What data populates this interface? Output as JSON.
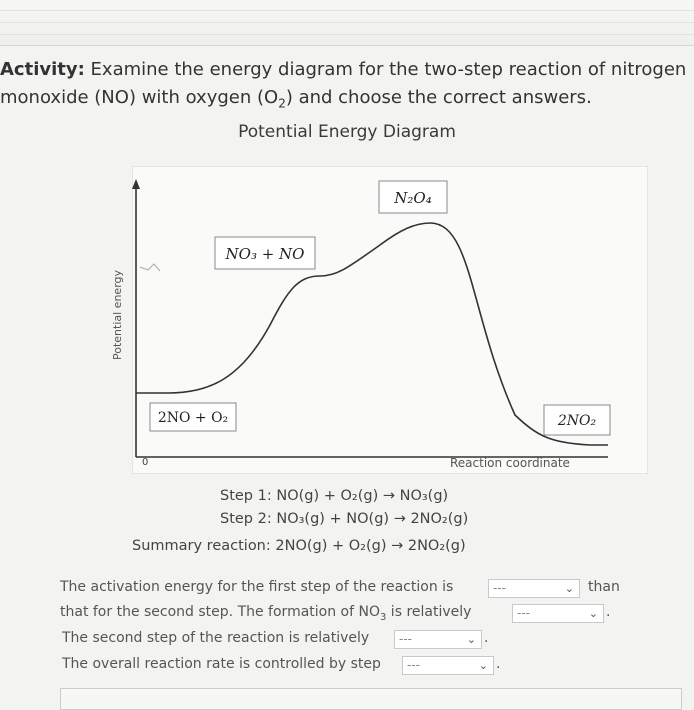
{
  "activity": {
    "label": "Activity:",
    "line1": " Examine the energy diagram for the two-step reaction of nitrogen",
    "line2_pre": "monoxide (NO) with oxygen (O",
    "line2_sub": "2",
    "line2_post": ") and choose the correct answers."
  },
  "diagram": {
    "title": "Potential Energy Diagram",
    "y_axis_label": "Potential energy",
    "x_axis_label": "Reaction coordinate",
    "origin_label": "0",
    "species": {
      "reactants": "2NO + O₂",
      "intermediate": "NO₃ + NO",
      "transition": "N₂O₄",
      "products": "2NO₂"
    }
  },
  "chart_data": {
    "type": "line",
    "xlabel": "Reaction coordinate",
    "ylabel": "Potential energy",
    "points": [
      {
        "label": "2NO + O₂",
        "x": 0,
        "y": 0
      },
      {
        "label": "NO₃ + NO",
        "x": 0.35,
        "y": 0.58
      },
      {
        "label": "N₂O₄",
        "x": 0.56,
        "y": 0.87
      },
      {
        "label": "2NO₂",
        "x": 1.0,
        "y": -0.1
      }
    ]
  },
  "reactions": {
    "step1": "Step 1:  NO(g) + O₂(g) → NO₃(g)",
    "step2": "Step 2:  NO₃(g) + NO(g) → 2NO₂(g)",
    "summary": "Summary reaction: 2NO(g) + O₂(g) → 2NO₂(g)"
  },
  "questions": {
    "q1_pre": "The activation energy for the first step of the reaction is",
    "q1_post": "than",
    "q2_pre": "that for the second step. The formation of NO",
    "q2_sub": "3",
    "q2_post": " is relatively",
    "q3_pre": "The second step of the reaction is relatively",
    "q4_pre": "The overall reaction rate is controlled by step",
    "dropdown_placeholder": "---",
    "period": "."
  }
}
